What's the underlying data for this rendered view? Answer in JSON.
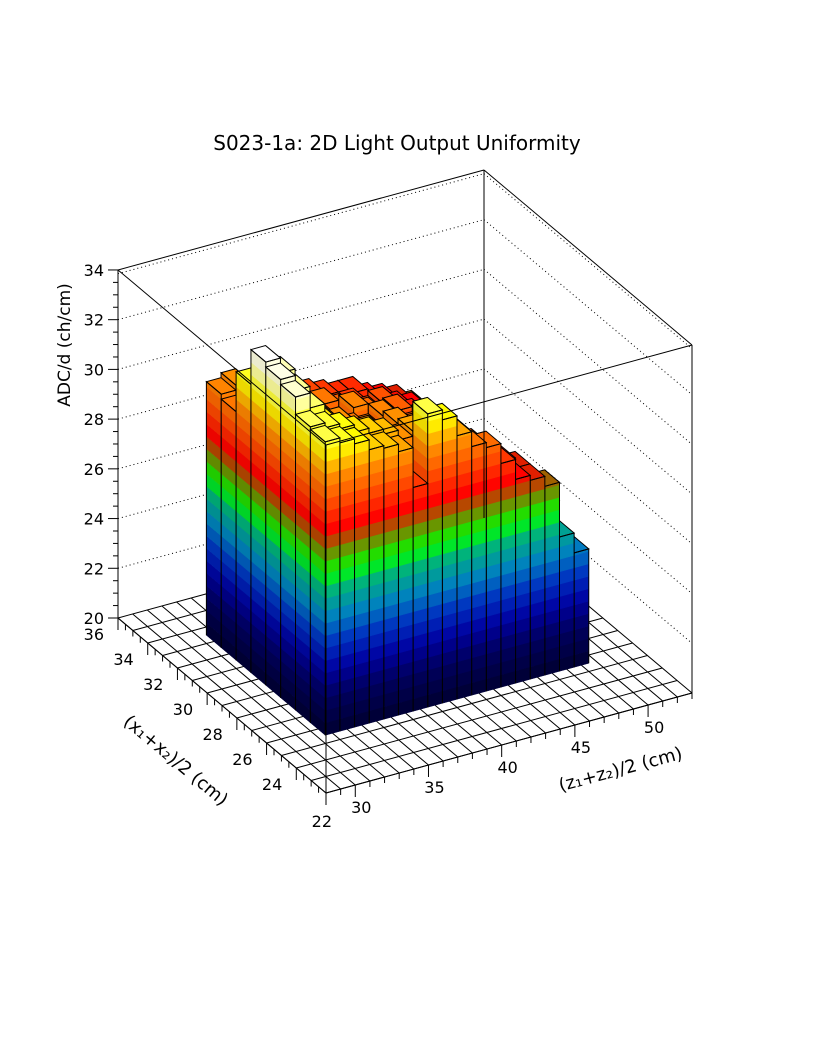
{
  "chart_data": {
    "type": "lego3d",
    "title": "S023-1a: 2D Light Output Uniformity",
    "xlabel": "(z₁+z₂)/2 (cm)",
    "ylabel": "(x₁+x₂)/2 (cm)",
    "zlabel": "ADC/d (ch/cm)",
    "z_range": [
      28,
      53
    ],
    "x_range": [
      22,
      36
    ],
    "value_range": [
      20,
      34
    ],
    "z_ticks": [
      30,
      35,
      40,
      45,
      50
    ],
    "x_ticks": [
      22,
      24,
      26,
      28,
      30,
      32,
      34,
      36
    ],
    "value_ticks": [
      20,
      22,
      24,
      26,
      28,
      30,
      32,
      34
    ],
    "grid": true,
    "z_bin_edges_start": 31.5,
    "x_bin_edges_start": 25.5,
    "bin_width": 1,
    "values": [
      [
        31.8,
        31.6,
        31.4,
        31.0,
        30.9,
        30.6,
        29.0,
        31.8,
        31.4,
        30.6,
        30.0,
        29.8,
        29.0,
        28.2,
        28.0,
        27.6,
        25.4,
        24.6
      ],
      [
        31.9,
        31.7,
        31.5,
        31.2,
        31.0,
        30.8,
        30.4,
        30.6,
        31.0,
        30.4,
        29.9,
        29.4,
        28.8,
        28.4,
        28.0,
        27.2,
        26.2,
        null
      ],
      [
        32.6,
        32.0,
        31.2,
        30.8,
        30.2,
        30.4,
        30.0,
        30.4,
        30.0,
        29.8,
        29.6,
        29.2,
        28.6,
        28.2,
        27.6,
        26.8,
        26.4,
        null
      ],
      [
        32.8,
        32.2,
        31.0,
        30.6,
        30.4,
        30.0,
        29.8,
        30.2,
        29.6,
        29.4,
        29.2,
        28.8,
        28.6,
        28.0,
        27.8,
        26.6,
        null,
        null
      ],
      [
        33.0,
        32.4,
        31.2,
        30.4,
        30.0,
        29.6,
        30.2,
        29.8,
        29.4,
        29.6,
        29.0,
        28.6,
        28.4,
        28.0,
        27.4,
        null,
        null,
        null
      ],
      [
        31.6,
        31.0,
        30.6,
        30.2,
        29.8,
        30.0,
        29.6,
        29.4,
        29.2,
        29.4,
        28.8,
        28.6,
        28.2,
        27.8,
        27.0,
        null,
        null,
        null
      ],
      [
        30.0,
        29.8,
        29.6,
        29.4,
        29.6,
        29.4,
        29.2,
        29.0,
        29.0,
        28.8,
        28.6,
        28.4,
        28.2,
        27.8,
        null,
        null,
        null,
        null
      ],
      [
        30.2,
        30.4,
        29.8,
        29.6,
        30.0,
        29.4,
        29.2,
        29.0,
        28.8,
        28.8,
        28.4,
        28.2,
        28.0,
        27.6,
        null,
        null,
        null,
        null
      ]
    ]
  }
}
